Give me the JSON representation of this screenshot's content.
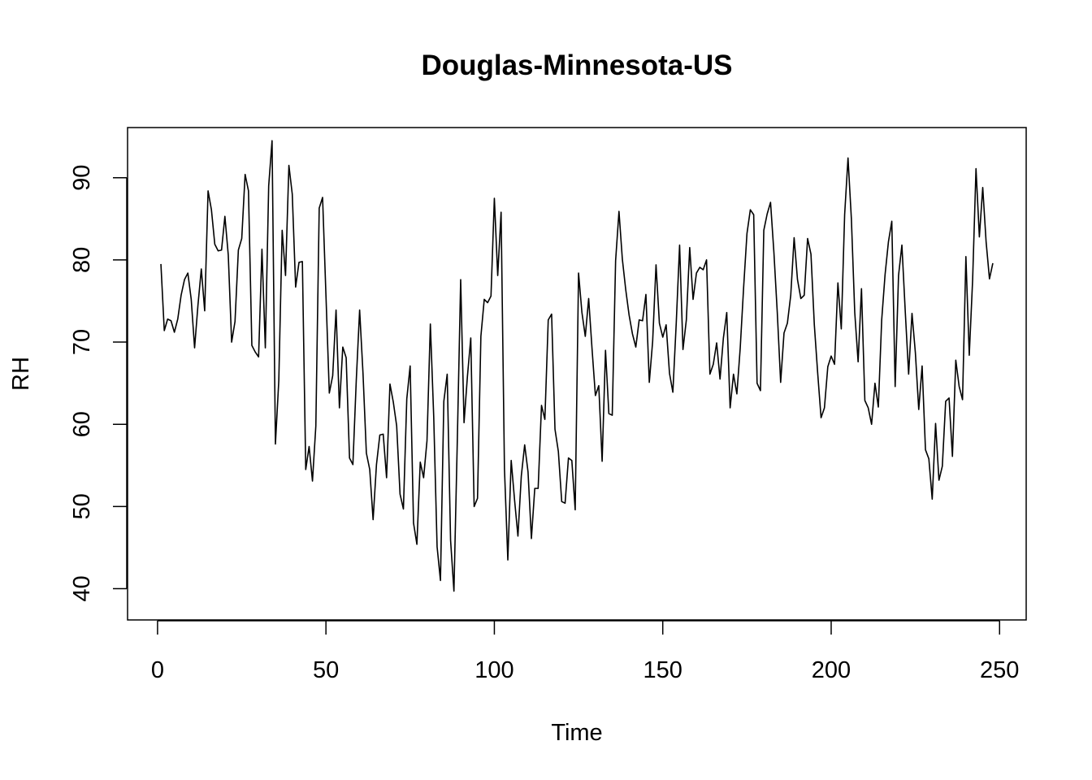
{
  "chart_data": {
    "type": "line",
    "title": "Douglas-Minnesota-US",
    "xlabel": "Time",
    "ylabel": "RH",
    "xlim": [
      -8.9,
      257.9
    ],
    "ylim": [
      36.2,
      96.1
    ],
    "xticks": [
      0,
      50,
      100,
      150,
      200,
      250
    ],
    "yticks": [
      40,
      50,
      60,
      70,
      80,
      90
    ],
    "grid": false,
    "legend": "none",
    "line_color": "#000000",
    "series": [
      {
        "x": [
          1,
          2,
          3,
          4,
          5,
          6,
          7,
          8,
          9,
          10,
          11,
          12,
          13,
          14,
          15,
          16,
          17,
          18,
          19,
          20,
          21,
          22,
          23,
          24,
          25,
          26,
          27,
          28,
          29,
          30,
          31,
          32,
          33,
          34,
          35,
          36,
          37,
          38,
          39,
          40,
          41,
          42,
          43,
          44,
          45,
          46,
          47,
          48,
          49,
          50,
          51,
          52,
          53,
          54,
          55,
          56,
          57,
          58,
          59,
          60,
          61,
          62,
          63,
          64,
          65,
          66,
          67,
          68,
          69,
          70,
          71,
          72,
          73,
          74,
          75,
          76,
          77,
          78,
          79,
          80,
          81,
          82,
          83,
          84,
          85,
          86,
          87,
          88,
          89,
          90,
          91,
          92,
          93,
          94,
          95,
          96,
          97,
          98,
          99,
          100,
          101,
          102,
          103,
          104,
          105,
          106,
          107,
          108,
          109,
          110,
          111,
          112,
          113,
          114,
          115,
          116,
          117,
          118,
          119,
          120,
          121,
          122,
          123,
          124,
          125,
          126,
          127,
          128,
          129,
          130,
          131,
          132,
          133,
          134,
          135,
          136,
          137,
          138,
          139,
          140,
          141,
          142,
          143,
          144,
          145,
          146,
          147,
          148,
          149,
          150,
          151,
          152,
          153,
          154,
          155,
          156,
          157,
          158,
          159,
          160,
          161,
          162,
          163,
          164,
          165,
          166,
          167,
          168,
          169,
          170,
          171,
          172,
          173,
          174,
          175,
          176,
          177,
          178,
          179,
          180,
          181,
          182,
          183,
          184,
          185,
          186,
          187,
          188,
          189,
          190,
          191,
          192,
          193,
          194,
          195,
          196,
          197,
          198,
          199,
          200,
          201,
          202,
          203,
          204,
          205,
          206,
          207,
          208,
          209,
          210,
          211,
          212,
          213,
          214,
          215,
          216,
          217,
          218,
          219,
          220,
          221,
          222,
          223,
          224,
          225,
          226,
          227,
          228,
          229,
          230,
          231,
          232,
          233,
          234,
          235,
          236,
          237,
          238,
          239,
          240,
          241,
          242,
          243,
          244,
          245,
          246,
          247,
          248
        ],
        "values": [
          79.5,
          71.4,
          72.8,
          72.6,
          71.2,
          72.8,
          75.7,
          77.6,
          78.4,
          75.2,
          69.3,
          74.5,
          78.9,
          73.8,
          88.4,
          86.1,
          81.9,
          81.1,
          81.2,
          85.3,
          80.6,
          70.0,
          72.5,
          81.2,
          82.6,
          90.4,
          88.4,
          69.6,
          68.8,
          68.2,
          81.3,
          69.3,
          89.0,
          94.5,
          57.6,
          65.3,
          83.6,
          78.1,
          91.5,
          88.0,
          76.7,
          79.7,
          79.8,
          54.5,
          57.3,
          53.1,
          59.8,
          86.3,
          87.6,
          75.7,
          63.8,
          65.9,
          73.9,
          62.0,
          69.4,
          68.1,
          55.9,
          55.1,
          65.3,
          73.9,
          66.2,
          56.5,
          54.5,
          48.4,
          55.1,
          58.7,
          58.8,
          53.5,
          64.9,
          62.7,
          59.8,
          51.5,
          49.7,
          63.1,
          67.1,
          48.0,
          45.4,
          55.4,
          53.5,
          58.0,
          72.2,
          60.9,
          45.1,
          41.0,
          62.8,
          66.1,
          45.9,
          39.7,
          58.0,
          77.6,
          60.2,
          65.8,
          70.5,
          50.0,
          51.0,
          70.7,
          75.2,
          74.8,
          75.6,
          87.5,
          78.1,
          85.8,
          54.6,
          43.5,
          55.6,
          50.8,
          46.4,
          53.7,
          57.5,
          54.2,
          46.1,
          52.2,
          52.2,
          62.3,
          60.6,
          72.7,
          73.4,
          59.4,
          56.7,
          50.6,
          50.4,
          55.9,
          55.6,
          49.6,
          78.4,
          73.6,
          70.7,
          75.3,
          69.2,
          63.5,
          64.7,
          55.5,
          69.0,
          61.3,
          61.1,
          79.9,
          85.9,
          80.1,
          76.4,
          73.3,
          71.0,
          69.4,
          72.7,
          72.6,
          75.8,
          65.1,
          70.1,
          79.4,
          72.3,
          70.6,
          72.1,
          66.2,
          63.9,
          72.3,
          81.8,
          69.1,
          72.7,
          81.5,
          75.2,
          78.4,
          79.1,
          78.8,
          80.0,
          66.1,
          67.3,
          69.9,
          65.5,
          70.5,
          73.6,
          62.0,
          66.1,
          63.7,
          69.3,
          76.6,
          83.2,
          86.1,
          85.5,
          65.0,
          64.1,
          83.6,
          85.6,
          87.0,
          80.9,
          73.6,
          65.1,
          71.1,
          72.3,
          75.7,
          82.7,
          77.6,
          75.3,
          75.7,
          82.6,
          80.7,
          72.1,
          66.2,
          60.8,
          62.0,
          67.0,
          68.3,
          67.3,
          77.2,
          71.6,
          85.5,
          92.4,
          85.0,
          73.6,
          67.6,
          76.5,
          62.9,
          62.0,
          60.0,
          65.0,
          62.1,
          72.7,
          78.2,
          82.2,
          84.7,
          64.6,
          78.1,
          81.8,
          73.7,
          66.1,
          73.5,
          68.7,
          61.8,
          67.1,
          56.9,
          55.8,
          50.9,
          60.1,
          53.2,
          54.9,
          62.8,
          63.2,
          56.1,
          67.8,
          64.6,
          63.0,
          80.4,
          68.4,
          77.6,
          91.1,
          82.8,
          88.8,
          82.2,
          77.7,
          79.6
        ]
      }
    ]
  }
}
